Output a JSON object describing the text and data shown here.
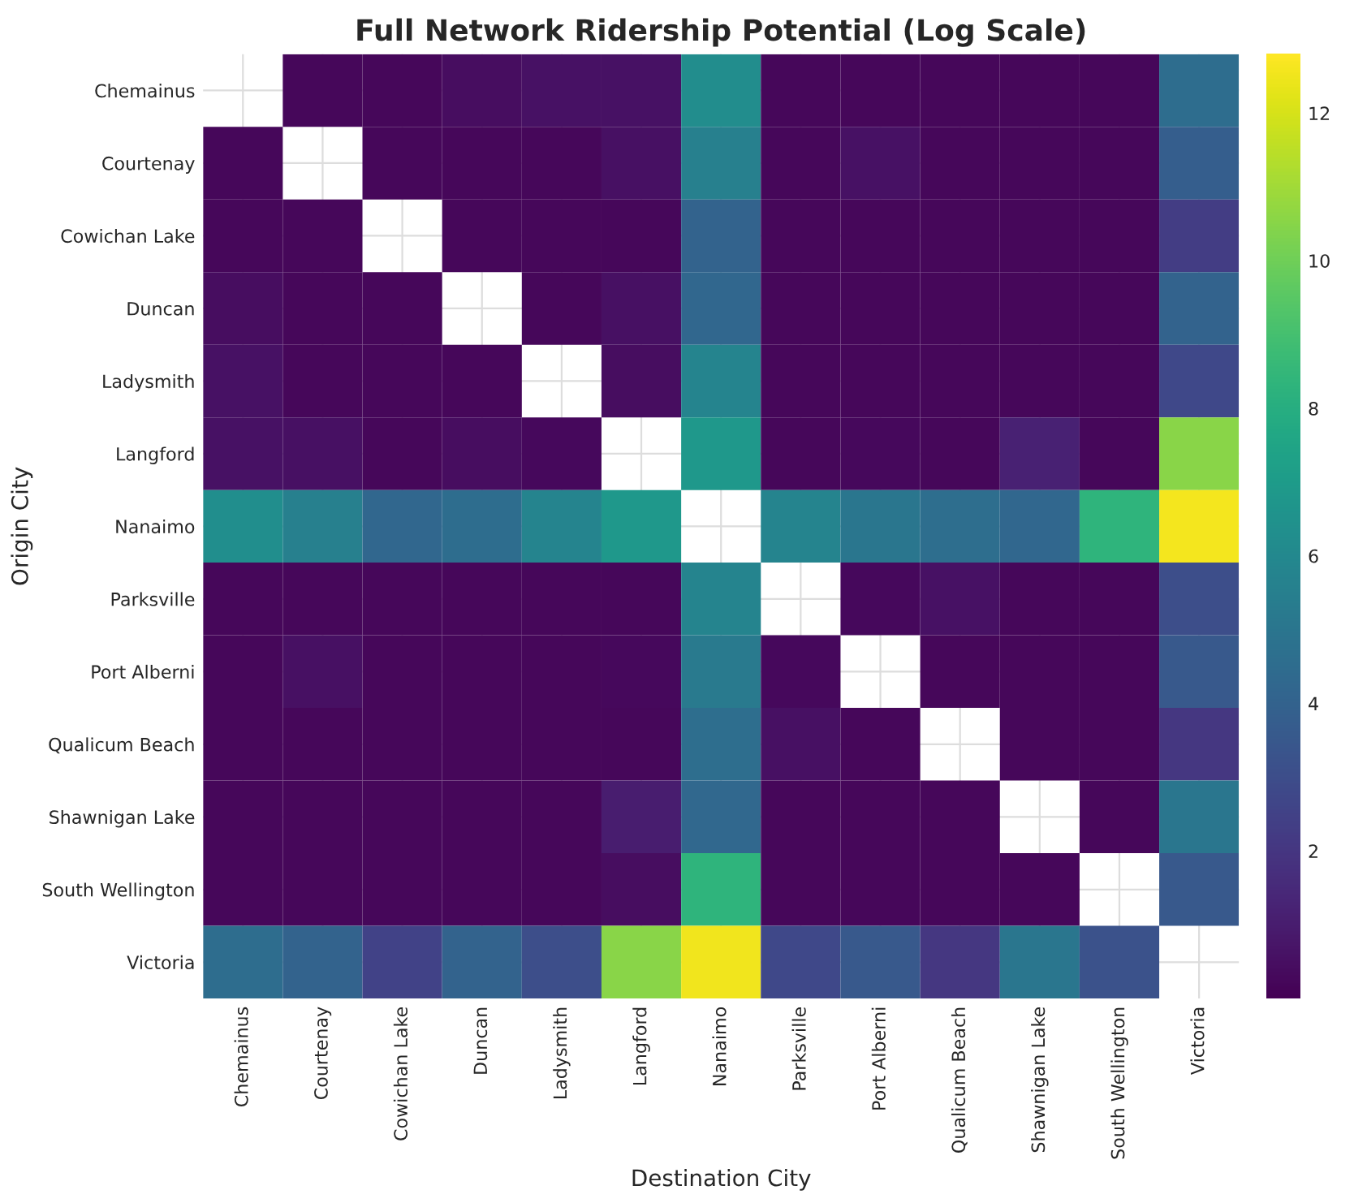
{
  "chart_data": {
    "type": "heatmap",
    "title": "Full Network Ridership Potential (Log Scale)",
    "xlabel": "Destination City",
    "ylabel": "Origin City",
    "categories": [
      "Chemainus",
      "Courtenay",
      "Cowichan Lake",
      "Duncan",
      "Ladysmith",
      "Langford",
      "Nanaimo",
      "Parksville",
      "Port Alberni",
      "Qualicum Beach",
      "Shawnigan Lake",
      "South Wellington",
      "Victoria"
    ],
    "y_categories": [
      "Chemainus",
      "Courtenay",
      "Cowichan Lake",
      "Duncan",
      "Ladysmith",
      "Langford",
      "Nanaimo",
      "Parksville",
      "Port Alberni",
      "Qualicum Beach",
      "Shawnigan Lake",
      "South Wellington",
      "Victoria"
    ],
    "cells": [
      [
        null,
        0.2,
        0.2,
        0.4,
        0.6,
        0.6,
        6.2,
        0.2,
        0.2,
        0.2,
        0.2,
        0.2,
        4.5
      ],
      [
        0.2,
        null,
        0.2,
        0.2,
        0.2,
        0.5,
        5.5,
        0.2,
        0.6,
        0.2,
        0.2,
        0.2,
        3.8
      ],
      [
        0.2,
        0.2,
        null,
        0.2,
        0.2,
        0.2,
        4.0,
        0.2,
        0.2,
        0.2,
        0.2,
        0.2,
        2.3
      ],
      [
        0.4,
        0.2,
        0.2,
        null,
        0.2,
        0.5,
        4.2,
        0.2,
        0.2,
        0.2,
        0.2,
        0.2,
        4.0
      ],
      [
        0.6,
        0.2,
        0.2,
        0.2,
        null,
        0.4,
        5.8,
        0.2,
        0.2,
        0.2,
        0.2,
        0.2,
        2.8
      ],
      [
        0.6,
        0.5,
        0.2,
        0.4,
        0.3,
        null,
        6.8,
        0.2,
        0.3,
        0.2,
        1.2,
        0.2,
        10.5
      ],
      [
        6.3,
        5.5,
        4.2,
        4.5,
        5.8,
        6.8,
        null,
        5.8,
        5.0,
        4.6,
        4.2,
        8.3,
        12.6
      ],
      [
        0.2,
        0.2,
        0.2,
        0.2,
        0.2,
        0.2,
        5.8,
        null,
        0.3,
        0.6,
        0.2,
        0.2,
        3.0
      ],
      [
        0.2,
        0.5,
        0.2,
        0.2,
        0.2,
        0.3,
        5.2,
        0.3,
        null,
        0.2,
        0.2,
        0.2,
        3.5
      ],
      [
        0.2,
        0.2,
        0.2,
        0.2,
        0.2,
        0.2,
        4.6,
        0.5,
        0.2,
        null,
        0.2,
        0.2,
        2.0
      ],
      [
        0.2,
        0.2,
        0.2,
        0.2,
        0.2,
        1.0,
        4.3,
        0.2,
        0.2,
        0.2,
        null,
        0.2,
        5.0
      ],
      [
        0.2,
        0.2,
        0.2,
        0.2,
        0.2,
        0.4,
        8.3,
        0.2,
        0.2,
        0.2,
        0.2,
        null,
        3.5
      ],
      [
        4.5,
        4.0,
        2.5,
        4.0,
        3.0,
        10.5,
        12.5,
        2.8,
        3.5,
        2.0,
        5.0,
        3.2,
        null
      ]
    ],
    "clim": [
      0,
      12.8
    ],
    "cticks": [
      2,
      4,
      6,
      8,
      10,
      12
    ],
    "grid": true
  }
}
